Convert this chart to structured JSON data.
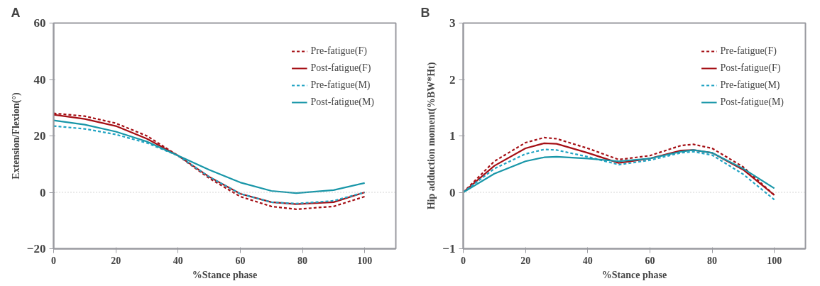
{
  "chart_data": [
    {
      "type": "line",
      "annotations": [
        "A"
      ],
      "xlabel": "%Stance phase",
      "ylabel": "Extension/Flexion(°)",
      "xlim": [
        0,
        110
      ],
      "xticks": [
        0,
        20,
        40,
        60,
        80,
        100
      ],
      "ylim": [
        -20,
        60
      ],
      "yticks": [
        -20,
        0,
        20,
        40,
        60
      ],
      "legend": "top right",
      "grid": false,
      "x": [
        0,
        10,
        20,
        30,
        40,
        50,
        60,
        70,
        78,
        90,
        100
      ],
      "ref_lines": [
        {
          "axis": "y",
          "value": 0,
          "color": "#aaaaaa",
          "line_style": "dotted"
        }
      ],
      "series": [
        {
          "name": "Pre-fatigue(F)",
          "color": "#a50f15",
          "line_style": "dashed",
          "values": [
            28,
            27,
            24.5,
            20,
            13,
            5,
            -1.5,
            -5,
            -6,
            -5,
            -1.5
          ]
        },
        {
          "name": "Post-fatigue(F)",
          "color": "#a50f15",
          "line_style": "solid",
          "values": [
            27.5,
            26,
            23.5,
            19,
            13,
            5.5,
            -0.5,
            -3.5,
            -4.2,
            -3.5,
            0
          ]
        },
        {
          "name": "Pre-fatigue(M)",
          "color": "#22a4c4",
          "line_style": "dashed",
          "values": [
            23.5,
            22.5,
            20.5,
            17.5,
            13,
            5.5,
            -0.5,
            -3.5,
            -4,
            -3,
            0
          ]
        },
        {
          "name": "Post-fatigue(M)",
          "color": "#1896a8",
          "line_style": "solid",
          "values": [
            25.5,
            24,
            21.5,
            18,
            13,
            8,
            3.5,
            0.5,
            -0.3,
            0.8,
            3.3
          ]
        }
      ]
    },
    {
      "type": "line",
      "annotations": [
        "B"
      ],
      "xlabel": "%Stance phase",
      "ylabel": "Hip adduction moment(%BW*Ht)",
      "xlim": [
        0,
        110
      ],
      "xticks": [
        0,
        20,
        40,
        60,
        80,
        100
      ],
      "ylim": [
        -1,
        3
      ],
      "yticks": [
        -1,
        0,
        1,
        2,
        3
      ],
      "legend": "top right",
      "grid": false,
      "x": [
        0,
        10,
        20,
        26,
        30,
        40,
        50,
        60,
        70,
        74,
        80,
        90,
        100
      ],
      "ref_lines": [
        {
          "axis": "y",
          "value": 0,
          "color": "#aaaaaa",
          "line_style": "dotted"
        }
      ],
      "series": [
        {
          "name": "Pre-fatigue(F)",
          "color": "#a50f15",
          "line_style": "dashed",
          "values": [
            0,
            0.55,
            0.88,
            0.97,
            0.95,
            0.78,
            0.58,
            0.65,
            0.83,
            0.85,
            0.78,
            0.45,
            -0.05
          ]
        },
        {
          "name": "Post-fatigue(F)",
          "color": "#a50f15",
          "line_style": "solid",
          "values": [
            0,
            0.47,
            0.78,
            0.87,
            0.86,
            0.7,
            0.52,
            0.6,
            0.74,
            0.75,
            0.7,
            0.4,
            -0.05
          ]
        },
        {
          "name": "Pre-fatigue(M)",
          "color": "#22a4c4",
          "line_style": "dashed",
          "values": [
            0,
            0.42,
            0.68,
            0.76,
            0.75,
            0.63,
            0.49,
            0.57,
            0.7,
            0.72,
            0.66,
            0.32,
            -0.13
          ]
        },
        {
          "name": "Post-fatigue(M)",
          "color": "#1896a8",
          "line_style": "solid",
          "values": [
            0,
            0.33,
            0.55,
            0.62,
            0.63,
            0.6,
            0.55,
            0.6,
            0.72,
            0.75,
            0.7,
            0.42,
            0.07
          ]
        }
      ]
    }
  ]
}
